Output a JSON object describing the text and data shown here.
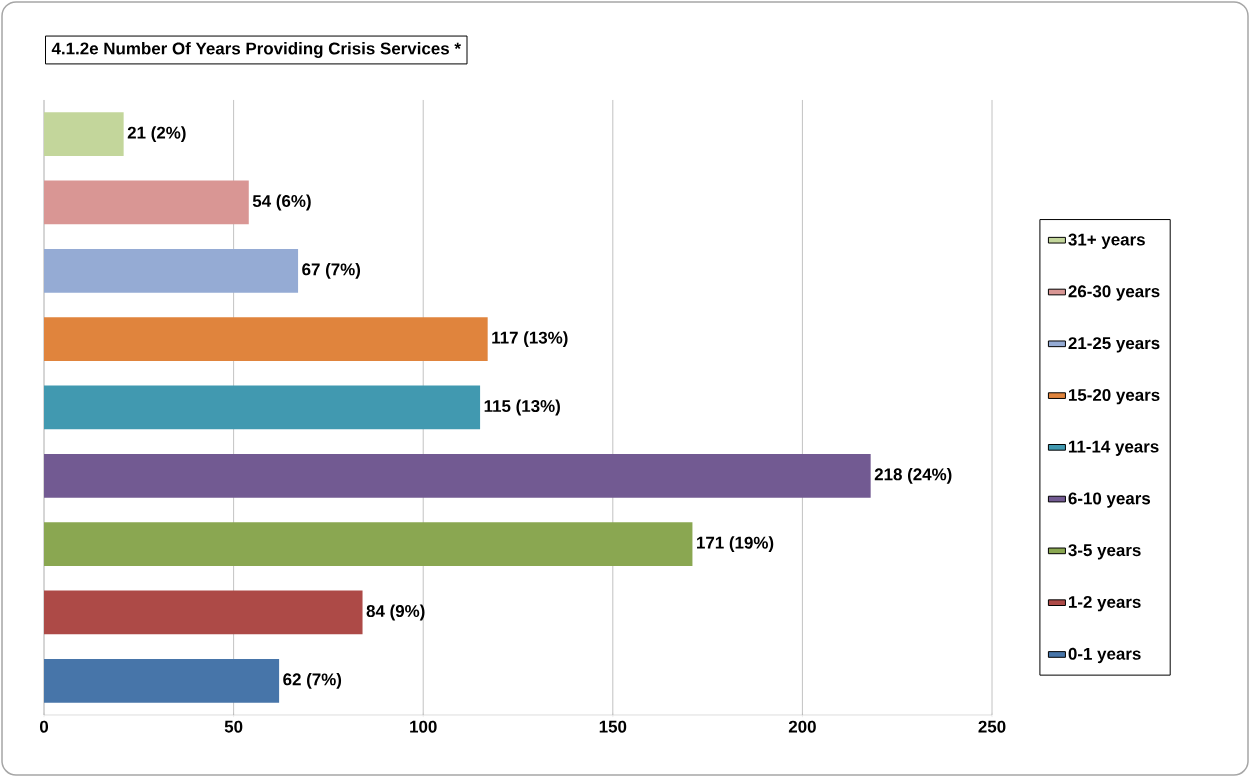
{
  "chart_data": {
    "type": "bar",
    "orientation": "horizontal",
    "title": "4.1.2e Number Of Years Providing Crisis Services *",
    "categories": [
      null
    ],
    "series": [
      {
        "name": "31+ years",
        "color": "#c3d69b",
        "values": [
          21
        ],
        "value_labels": [
          "21 (2%)"
        ]
      },
      {
        "name": "26-30 years",
        "color": "#d99694",
        "values": [
          54
        ],
        "value_labels": [
          "54 (6%)"
        ]
      },
      {
        "name": "21-25 years",
        "color": "#95abd4",
        "values": [
          67
        ],
        "value_labels": [
          "67 (7%)"
        ]
      },
      {
        "name": "15-20 years",
        "color": "#e0843d",
        "values": [
          117
        ],
        "value_labels": [
          "117 (13%)"
        ]
      },
      {
        "name": "11-14 years",
        "color": "#4199b0",
        "values": [
          115
        ],
        "value_labels": [
          "115 (13%)"
        ]
      },
      {
        "name": "6-10 years",
        "color": "#725a92",
        "values": [
          218
        ],
        "value_labels": [
          "218 (24%)"
        ]
      },
      {
        "name": "3-5 years",
        "color": "#8aa751",
        "values": [
          171
        ],
        "value_labels": [
          "171 (19%)"
        ]
      },
      {
        "name": "1-2 years",
        "color": "#ad4a47",
        "values": [
          84
        ],
        "value_labels": [
          "84 (9%)"
        ]
      },
      {
        "name": "0-1 years",
        "color": "#4775a9",
        "values": [
          62
        ],
        "value_labels": [
          "62 (7%)"
        ]
      }
    ],
    "xlim": [
      0,
      250
    ],
    "xticks": [
      0,
      50,
      100,
      150,
      200,
      250
    ],
    "grid": "x",
    "legend": "right",
    "tick_labels": "x"
  }
}
